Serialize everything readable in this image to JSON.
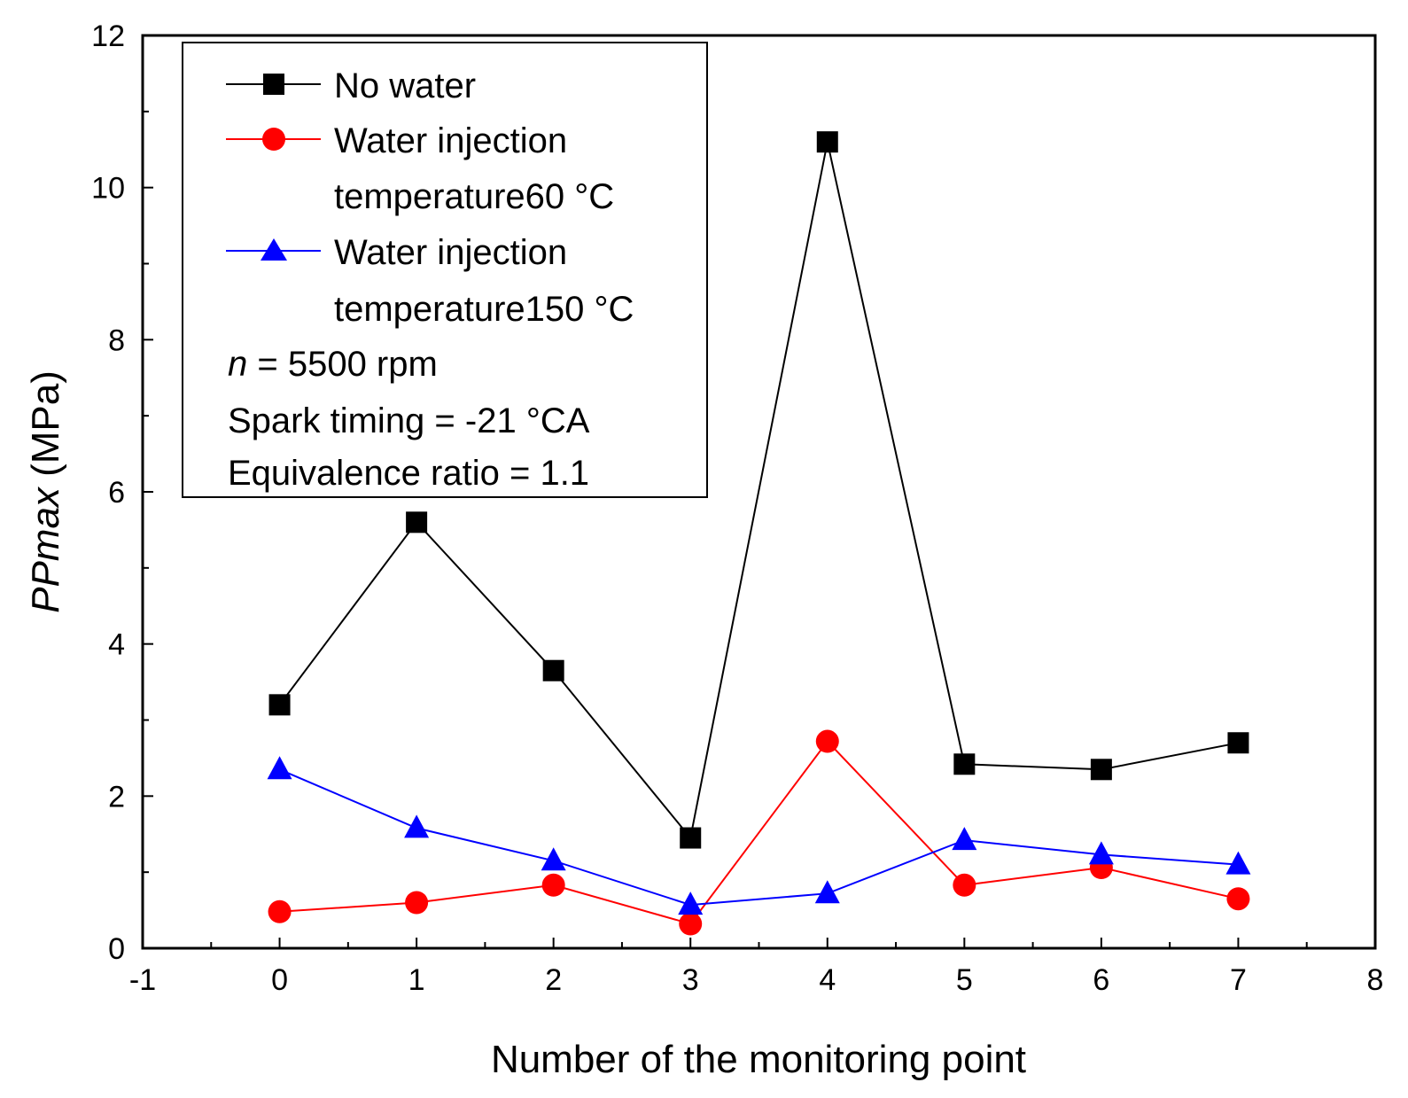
{
  "chart_data": {
    "type": "line",
    "xlabel": "Number of the monitoring point",
    "ylabel_italic": "PPmax",
    "ylabel_unit": " (MPa)",
    "xlim": [
      -1,
      8
    ],
    "ylim": [
      0,
      12
    ],
    "x_ticks": [
      -1,
      0,
      1,
      2,
      3,
      4,
      5,
      6,
      7,
      8
    ],
    "y_ticks": [
      0,
      2,
      4,
      6,
      8,
      10,
      12
    ],
    "x_tick_labels": [
      "-1",
      "0",
      "1",
      "2",
      "3",
      "4",
      "5",
      "6",
      "7",
      "8"
    ],
    "y_tick_labels": [
      "0",
      "2",
      "4",
      "6",
      "8",
      "10",
      "12"
    ],
    "x": [
      0,
      1,
      2,
      3,
      4,
      5,
      6,
      7
    ],
    "series": [
      {
        "name": "No water",
        "legend_line1": "No water",
        "legend_line2": "",
        "color": "#000000",
        "marker": "square",
        "values": [
          3.2,
          5.6,
          3.65,
          1.45,
          10.6,
          2.42,
          2.35,
          2.7
        ]
      },
      {
        "name": "Water injection temperature60 °C",
        "legend_line1": "Water injection",
        "legend_line2": "temperature60 °C",
        "color": "#ff0000",
        "marker": "circle",
        "values": [
          0.48,
          0.6,
          0.83,
          0.32,
          2.72,
          0.83,
          1.06,
          0.65
        ]
      },
      {
        "name": "Water injection temperature150 °C",
        "legend_line1": "Water injection",
        "legend_line2": "temperature150 °C",
        "color": "#0000ff",
        "marker": "triangle",
        "values": [
          2.35,
          1.58,
          1.15,
          0.57,
          0.72,
          1.42,
          1.23,
          1.1
        ]
      }
    ],
    "annotations": {
      "speed_italic": "n",
      "speed_rest": " = 5500 rpm",
      "spark": "Spark timing = -21 °CA",
      "equivalence": "Equivalence ratio = 1.1"
    },
    "legend_position": "top-left",
    "grid": false
  }
}
